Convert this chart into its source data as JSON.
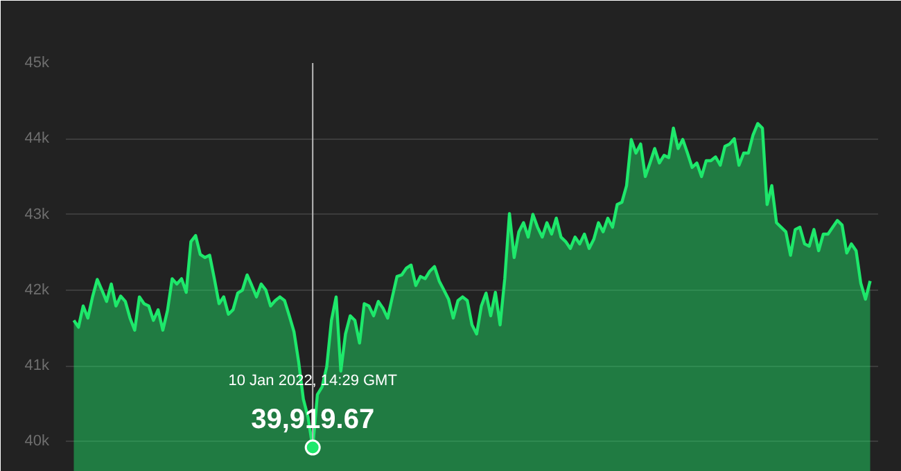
{
  "chart_data": {
    "type": "area",
    "categories": [
      null,
      null,
      null,
      null,
      null,
      null,
      null,
      null,
      null,
      null,
      null,
      null,
      null,
      null,
      null,
      null,
      null,
      null,
      null,
      null,
      null,
      null,
      null,
      null,
      null,
      null,
      null,
      null,
      null,
      null,
      null,
      null,
      null,
      null,
      null,
      null,
      null,
      null,
      null,
      null,
      null,
      null,
      null,
      null,
      null,
      null,
      null,
      null,
      null,
      null,
      null,
      null,
      null,
      null,
      null,
      null,
      null,
      null,
      null,
      null,
      null,
      null,
      null,
      null,
      null,
      null,
      null,
      null,
      null,
      null,
      null,
      null,
      null,
      null,
      null,
      null,
      null,
      null,
      null,
      null,
      null,
      null,
      null,
      null,
      null,
      null,
      null,
      null,
      null,
      null,
      null,
      null,
      null,
      null,
      null,
      null,
      null,
      null,
      null,
      null,
      null,
      null,
      null,
      null,
      null,
      null,
      null,
      null,
      null,
      null,
      null,
      null,
      null,
      null,
      null,
      null,
      null,
      null,
      null,
      null,
      null,
      null,
      null,
      null,
      null,
      null,
      null,
      null,
      null,
      null,
      null,
      null,
      null,
      null,
      null,
      null,
      null,
      null,
      null,
      null,
      null,
      null,
      null,
      null,
      null,
      null,
      null,
      null,
      null,
      null,
      null,
      null,
      null,
      null,
      null,
      null,
      null,
      null,
      null,
      null,
      null,
      null,
      null,
      null,
      null,
      null,
      null,
      null,
      null,
      null,
      null
    ],
    "series": [
      {
        "color": "#1ee86b",
        "values": [
          41600,
          41510,
          41790,
          41630,
          41910,
          42140,
          42000,
          41850,
          42080,
          41790,
          41920,
          41850,
          41630,
          41470,
          41910,
          41820,
          41790,
          41600,
          41740,
          41470,
          41730,
          42150,
          42080,
          42150,
          41970,
          42640,
          42720,
          42470,
          42430,
          42460,
          42150,
          41820,
          41910,
          41680,
          41740,
          41960,
          42000,
          42200,
          42060,
          41910,
          42080,
          42000,
          41790,
          41860,
          41910,
          41860,
          41660,
          41450,
          41050,
          40560,
          40320,
          39919.67,
          40620,
          40720,
          40990,
          41600,
          41910,
          40930,
          41420,
          41660,
          41600,
          41300,
          41820,
          41790,
          41660,
          41850,
          41760,
          41630,
          41910,
          42180,
          42200,
          42290,
          42330,
          42060,
          42180,
          42150,
          42250,
          42310,
          42120,
          42000,
          41880,
          41630,
          41860,
          41910,
          41860,
          41540,
          41420,
          41790,
          41960,
          41660,
          41970,
          41540,
          42150,
          43010,
          42430,
          42770,
          42890,
          42700,
          43000,
          42830,
          42700,
          42890,
          42740,
          42950,
          42700,
          42640,
          42550,
          42700,
          42610,
          42740,
          42550,
          42670,
          42890,
          42770,
          42950,
          42830,
          43130,
          43160,
          43380,
          43990,
          43810,
          43930,
          43500,
          43680,
          43870,
          43680,
          43780,
          43750,
          44140,
          43870,
          43990,
          43810,
          43620,
          43680,
          43500,
          43710,
          43710,
          43760,
          43650,
          43900,
          43930,
          44000,
          43650,
          43810,
          43810,
          44050,
          44200,
          44140,
          43130,
          43380,
          42890,
          42830,
          42770,
          42460,
          42800,
          42830,
          42610,
          42580,
          42800,
          42520,
          42740,
          42740,
          42830,
          42920,
          42860,
          42490,
          42610,
          42520,
          42090,
          41880,
          42120
        ]
      }
    ],
    "ylim": [
      39600,
      45000
    ],
    "yticks": [
      {
        "value": 40000,
        "label": "40k"
      },
      {
        "value": 41000,
        "label": "41k"
      },
      {
        "value": 42000,
        "label": "42k"
      },
      {
        "value": 43000,
        "label": "43k"
      },
      {
        "value": 44000,
        "label": "44k"
      },
      {
        "value": 45000,
        "label": "45k"
      }
    ],
    "grid": "y",
    "tick_labels": "y",
    "annotations": [
      "10 Jan 2022, 14:29 GMT",
      {
        "text": "39,919.67",
        "y": 39919.67
      }
    ]
  }
}
